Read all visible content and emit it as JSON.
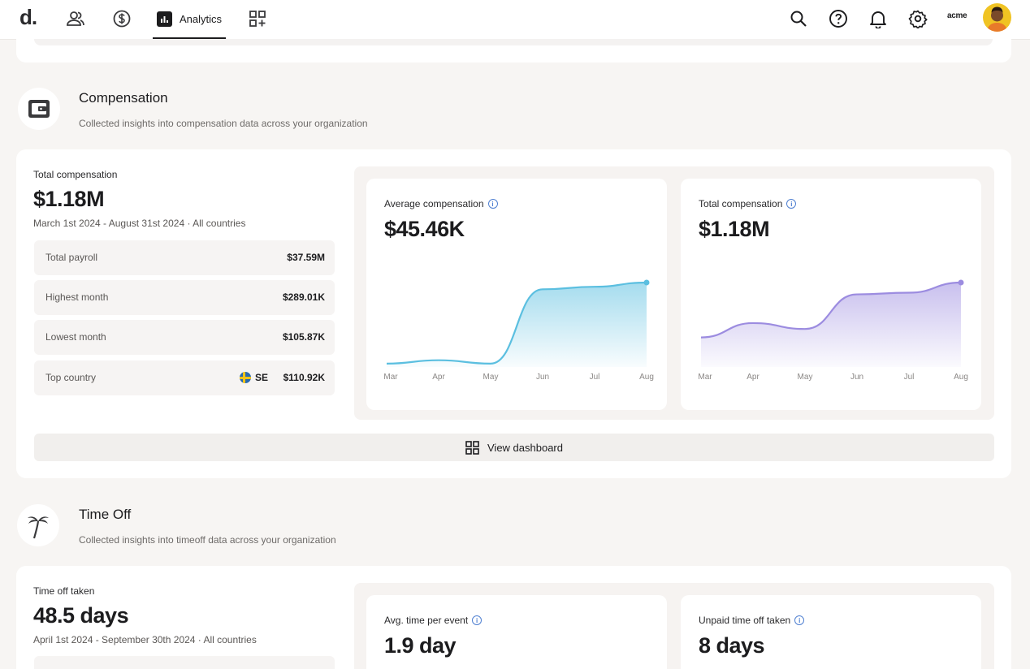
{
  "nav": {
    "logo": "d.",
    "analytics_label": "Analytics",
    "org": "acme"
  },
  "compensation": {
    "title": "Compensation",
    "subtitle": "Collected insights into compensation data across your organization",
    "metric_label": "Total compensation",
    "metric_value": "$1.18M",
    "range": "March 1st 2024 - August 31st 2024 · All countries",
    "stats": [
      {
        "label": "Total payroll",
        "value": "$37.59M"
      },
      {
        "label": "Highest month",
        "value": "$289.01K"
      },
      {
        "label": "Lowest month",
        "value": "$105.87K"
      },
      {
        "label": "Top country",
        "country": "SE",
        "value": "$110.92K"
      }
    ],
    "view_dashboard": "View dashboard"
  },
  "timeoff": {
    "title": "Time Off",
    "subtitle": "Collected insights into timeoff data across your organization",
    "metric_label": "Time off taken",
    "metric_value": "48.5 days",
    "range": "April 1st 2024 - September 30th 2024 · All countries",
    "cards": [
      {
        "title": "Avg. time per event",
        "value": "1.9 day"
      },
      {
        "title": "Unpaid time off taken",
        "value": "8 days"
      }
    ]
  },
  "chart_data": [
    {
      "type": "area",
      "title": "Average compensation",
      "headline": "$45.46K",
      "categories": [
        "Mar",
        "Apr",
        "May",
        "Jun",
        "Jul",
        "Aug"
      ],
      "series": [
        {
          "values": [
            0.04,
            0.08,
            0.04,
            0.92,
            0.95,
            1.0
          ]
        }
      ],
      "color": "#5bbfe0"
    },
    {
      "type": "area",
      "title": "Total compensation",
      "headline": "$1.18M",
      "categories": [
        "Mar",
        "Apr",
        "May",
        "Jun",
        "Jul",
        "Aug"
      ],
      "series": [
        {
          "values": [
            0.35,
            0.52,
            0.45,
            0.86,
            0.88,
            1.0
          ]
        }
      ],
      "color": "#9c8ce0"
    }
  ]
}
